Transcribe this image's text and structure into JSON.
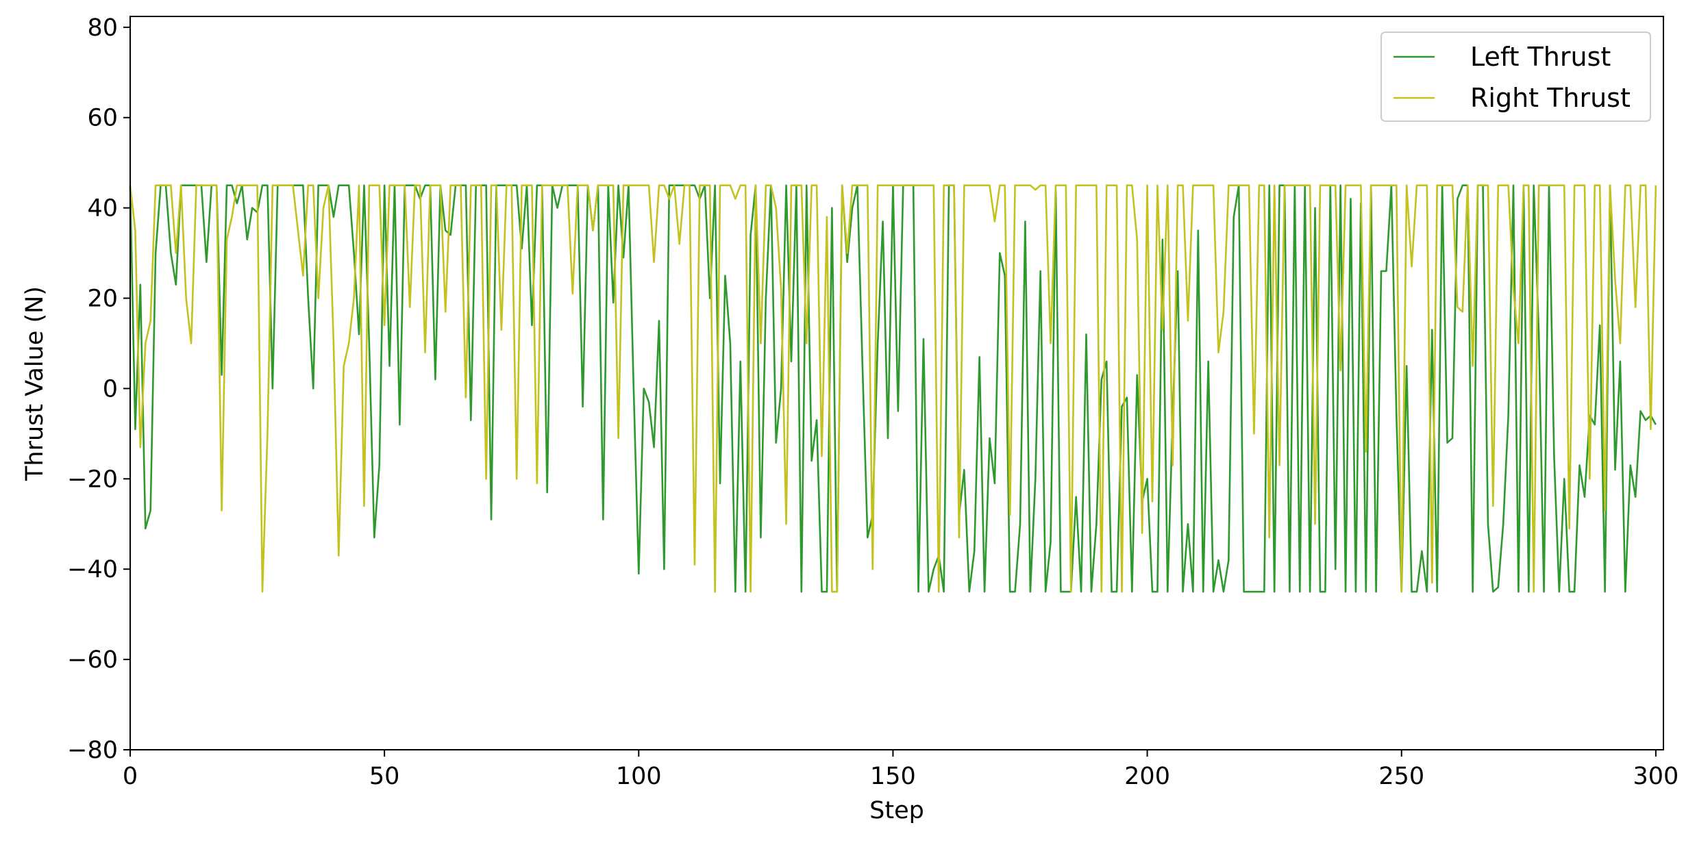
{
  "chart_data": {
    "type": "line",
    "xlabel": "Step",
    "ylabel": "Thrust Value (N)",
    "x": [
      0,
      1,
      2,
      3,
      4,
      5,
      6,
      7,
      8,
      9,
      10,
      11,
      12,
      13,
      14,
      15,
      16,
      17,
      18,
      19,
      20,
      21,
      22,
      23,
      24,
      25,
      26,
      27,
      28,
      29,
      30,
      31,
      32,
      33,
      34,
      35,
      36,
      37,
      38,
      39,
      40,
      41,
      42,
      43,
      44,
      45,
      46,
      47,
      48,
      49,
      50,
      51,
      52,
      53,
      54,
      55,
      56,
      57,
      58,
      59,
      60,
      61,
      62,
      63,
      64,
      65,
      66,
      67,
      68,
      69,
      70,
      71,
      72,
      73,
      74,
      75,
      76,
      77,
      78,
      79,
      80,
      81,
      82,
      83,
      84,
      85,
      86,
      87,
      88,
      89,
      90,
      91,
      92,
      93,
      94,
      95,
      96,
      97,
      98,
      99,
      100,
      101,
      102,
      103,
      104,
      105,
      106,
      107,
      108,
      109,
      110,
      111,
      112,
      113,
      114,
      115,
      116,
      117,
      118,
      119,
      120,
      121,
      122,
      123,
      124,
      125,
      126,
      127,
      128,
      129,
      130,
      131,
      132,
      133,
      134,
      135,
      136,
      137,
      138,
      139,
      140,
      141,
      142,
      143,
      144,
      145,
      146,
      147,
      148,
      149,
      150,
      151,
      152,
      153,
      154,
      155,
      156,
      157,
      158,
      159,
      160,
      161,
      162,
      163,
      164,
      165,
      166,
      167,
      168,
      169,
      170,
      171,
      172,
      173,
      174,
      175,
      176,
      177,
      178,
      179,
      180,
      181,
      182,
      183,
      184,
      185,
      186,
      187,
      188,
      189,
      190,
      191,
      192,
      193,
      194,
      195,
      196,
      197,
      198,
      199,
      200,
      201,
      202,
      203,
      204,
      205,
      206,
      207,
      208,
      209,
      210,
      211,
      212,
      213,
      214,
      215,
      216,
      217,
      218,
      219,
      220,
      221,
      222,
      223,
      224,
      225,
      226,
      227,
      228,
      229,
      230,
      231,
      232,
      233,
      234,
      235,
      236,
      237,
      238,
      239,
      240,
      241,
      242,
      243,
      244,
      245,
      246,
      247,
      248,
      249,
      250,
      251,
      252,
      253,
      254,
      255,
      256,
      257,
      258,
      259,
      260,
      261,
      262,
      263,
      264,
      265,
      266,
      267,
      268,
      269,
      270,
      271,
      272,
      273,
      274,
      275,
      276,
      277,
      278,
      279,
      280,
      281,
      282,
      283,
      284,
      285,
      286,
      287,
      288,
      289,
      290,
      291,
      292,
      293,
      294,
      295,
      296,
      297,
      298,
      299,
      300
    ],
    "series": [
      {
        "name": "Left Thrust",
        "color": "#2e9a2e",
        "values": [
          45,
          -9,
          23,
          -31,
          -27,
          30,
          45,
          45,
          30,
          23,
          45,
          45,
          45,
          45,
          45,
          28,
          45,
          45,
          3,
          45,
          45,
          41,
          45,
          33,
          40,
          39,
          45,
          45,
          0,
          45,
          45,
          45,
          45,
          45,
          45,
          20,
          0,
          45,
          45,
          45,
          38,
          45,
          45,
          45,
          30,
          12,
          45,
          10,
          -33,
          -17,
          45,
          5,
          45,
          -8,
          45,
          45,
          45,
          42,
          45,
          45,
          2,
          45,
          35,
          34,
          45,
          45,
          45,
          -7,
          45,
          45,
          45,
          -29,
          45,
          45,
          45,
          45,
          45,
          31,
          45,
          14,
          45,
          45,
          -23,
          45,
          40,
          45,
          45,
          45,
          45,
          -4,
          45,
          35,
          45,
          -29,
          45,
          19,
          45,
          29,
          45,
          0,
          -41,
          0,
          -3,
          -13,
          15,
          -40,
          45,
          45,
          45,
          45,
          45,
          45,
          42,
          45,
          20,
          45,
          -21,
          25,
          10,
          -45,
          6,
          -45,
          34,
          45,
          -33,
          20,
          45,
          -12,
          0,
          45,
          6,
          45,
          -45,
          45,
          -16,
          -7,
          -45,
          -45,
          40,
          -45,
          45,
          28,
          40,
          45,
          5,
          -33,
          -28,
          10,
          37,
          -11,
          45,
          -5,
          45,
          45,
          45,
          -45,
          11,
          -45,
          -40,
          -37,
          -45,
          45,
          45,
          -28,
          -18,
          -45,
          -36,
          7,
          -45,
          -11,
          -21,
          30,
          25,
          -45,
          -45,
          -30,
          37,
          -45,
          -20,
          26,
          -45,
          -34,
          44,
          -45,
          -45,
          -45,
          -24,
          -45,
          12,
          -45,
          -30,
          2,
          6,
          -45,
          -45,
          -4,
          -2,
          -45,
          3,
          -25,
          -20,
          -45,
          -45,
          33,
          -45,
          -6,
          26,
          -45,
          -30,
          -45,
          35,
          -45,
          6,
          -45,
          -38,
          -45,
          -38,
          38,
          45,
          -45,
          -45,
          -45,
          -45,
          -45,
          45,
          -45,
          45,
          45,
          -45,
          45,
          -45,
          45,
          -45,
          40,
          -45,
          -45,
          45,
          -40,
          45,
          -45,
          42,
          -45,
          41,
          -45,
          45,
          -45,
          26,
          26,
          45,
          -6,
          -45,
          5,
          -45,
          -45,
          -36,
          -45,
          13,
          -45,
          45,
          -12,
          -11,
          42,
          45,
          45,
          -45,
          45,
          45,
          -30,
          -45,
          -44,
          -30,
          -6,
          45,
          -45,
          45,
          -45,
          45,
          12,
          -45,
          45,
          -15,
          -45,
          -20,
          -45,
          -45,
          -17,
          -24,
          -6,
          -8,
          14,
          -45,
          45,
          -18,
          6,
          -45,
          -17,
          -24,
          -5,
          -7,
          -6,
          -8
        ]
      },
      {
        "name": "Right Thrust",
        "color": "#c4c21e",
        "values": [
          45,
          35,
          -13,
          10,
          15,
          45,
          45,
          45,
          45,
          30,
          45,
          20,
          10,
          45,
          45,
          45,
          45,
          45,
          -27,
          33,
          38,
          45,
          45,
          45,
          45,
          45,
          -45,
          -10,
          45,
          45,
          45,
          45,
          45,
          35,
          25,
          45,
          45,
          20,
          40,
          45,
          10,
          -37,
          5,
          10,
          20,
          45,
          -26,
          45,
          45,
          45,
          14,
          45,
          45,
          45,
          45,
          18,
          45,
          45,
          8,
          45,
          45,
          45,
          17,
          45,
          45,
          45,
          -2,
          45,
          45,
          45,
          -20,
          45,
          45,
          13,
          45,
          45,
          -20,
          45,
          45,
          45,
          -21,
          45,
          45,
          45,
          45,
          45,
          45,
          21,
          45,
          45,
          45,
          35,
          45,
          45,
          45,
          45,
          -11,
          45,
          45,
          45,
          45,
          45,
          45,
          28,
          45,
          45,
          42,
          45,
          32,
          45,
          45,
          -39,
          45,
          45,
          45,
          -45,
          45,
          45,
          45,
          42,
          45,
          45,
          -45,
          45,
          10,
          45,
          45,
          40,
          22,
          -30,
          45,
          45,
          45,
          10,
          45,
          45,
          -15,
          38,
          -45,
          -45,
          45,
          30,
          45,
          45,
          45,
          45,
          -40,
          45,
          45,
          45,
          45,
          45,
          45,
          45,
          45,
          45,
          45,
          45,
          45,
          -45,
          45,
          45,
          45,
          -33,
          45,
          45,
          45,
          45,
          45,
          45,
          37,
          45,
          45,
          -28,
          45,
          45,
          45,
          45,
          44,
          45,
          45,
          10,
          45,
          45,
          45,
          -45,
          45,
          45,
          45,
          45,
          45,
          -45,
          45,
          45,
          45,
          -45,
          45,
          45,
          33,
          -32,
          45,
          -25,
          45,
          13,
          45,
          -17,
          45,
          45,
          15,
          45,
          45,
          45,
          45,
          45,
          8,
          17,
          45,
          45,
          45,
          45,
          45,
          -10,
          45,
          45,
          -33,
          45,
          -17,
          45,
          45,
          45,
          45,
          45,
          45,
          -30,
          45,
          45,
          45,
          45,
          4,
          45,
          45,
          45,
          45,
          -14,
          45,
          45,
          45,
          45,
          45,
          45,
          -45,
          45,
          27,
          45,
          45,
          45,
          -43,
          45,
          45,
          45,
          45,
          18,
          17,
          45,
          5,
          45,
          45,
          45,
          -26,
          45,
          45,
          45,
          22,
          10,
          45,
          45,
          -45,
          45,
          45,
          45,
          45,
          45,
          45,
          -31,
          45,
          45,
          45,
          -20,
          45,
          45,
          -27,
          45,
          24,
          10,
          45,
          45,
          18,
          45,
          45,
          -9,
          45
        ]
      }
    ],
    "xlim": [
      0,
      301.5
    ],
    "ylim": [
      -80,
      82.4
    ],
    "xticks": [
      0,
      50,
      100,
      150,
      200,
      250,
      300
    ],
    "yticks": [
      {
        "value": -80,
        "label": "−80"
      },
      {
        "value": -60,
        "label": "−60"
      },
      {
        "value": -40,
        "label": "−40"
      },
      {
        "value": -20,
        "label": "−20"
      },
      0,
      20,
      40,
      60,
      80
    ],
    "legend": "upper right",
    "grid": false
  }
}
